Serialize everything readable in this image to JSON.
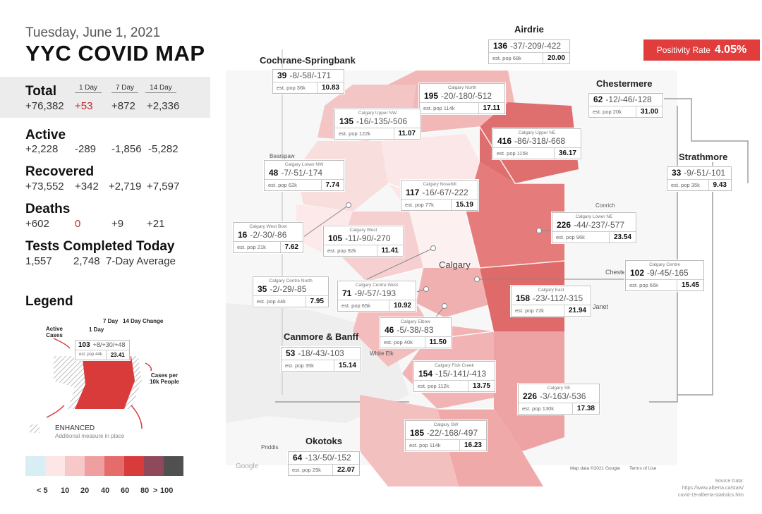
{
  "header": {
    "date": "Tuesday, June 1, 2021",
    "title": "YYC COVID MAP"
  },
  "columns": {
    "d1": "1 Day",
    "d7": "7 Day",
    "d14": "14 Day"
  },
  "stats": {
    "total": {
      "label": "Total",
      "value": "+76,382",
      "d1": "+53",
      "d7": "+872",
      "d14": "+2,336"
    },
    "active": {
      "label": "Active",
      "value": "+2,228",
      "d1": "-289",
      "d7": "-1,856",
      "d14": "-5,282"
    },
    "recovered": {
      "label": "Recovered",
      "value": "+73,552",
      "d1": "+342",
      "d7": "+2,719",
      "d14": "+7,597"
    },
    "deaths": {
      "label": "Deaths",
      "value": "+602",
      "d1": "0",
      "d7": "+9",
      "d14": "+21"
    },
    "tests": {
      "label": "Tests Completed Today",
      "value": "1,557",
      "avg": "2,748",
      "avg_label": "7-Day Average"
    }
  },
  "legend": {
    "title": "Legend",
    "seven_day": "7 Day",
    "fourteen_day": "14 Day Change",
    "one_day": "1 Day",
    "active_cases": "Active Cases",
    "example": {
      "num": "103",
      "change": "+8/+30/+48",
      "pop": "est. pop 44k",
      "rate": "23.41"
    },
    "cases_per": "Cases per 10k People",
    "enhanced": "ENHANCED",
    "enhanced_sub": "Additional measure in place",
    "scale_colors": [
      "#d8eef5",
      "#fde6e6",
      "#f7c8c8",
      "#ef9f9f",
      "#e66c6c",
      "#d93b3b",
      "#8e4a5a",
      "#505050"
    ],
    "scale_labels": [
      "< 5",
      "10",
      "20",
      "40",
      "60",
      "80",
      ">",
      "100"
    ]
  },
  "positivity": {
    "label": "Positivity Rate",
    "value": "4.05%"
  },
  "regions": {
    "airdrie": "Airdrie",
    "cochrane": "Cochrane-Springbank",
    "chestermere": "Chestermere",
    "strathmore": "Strathmore",
    "canmore": "Canmore & Banff",
    "okotoks": "Okotoks"
  },
  "cards": [
    {
      "name": "",
      "num": "136",
      "change": "-37/-209/-422",
      "pop": "est. pop 68k",
      "rate": "20.00"
    },
    {
      "name": "",
      "num": "39",
      "change": "-8/-58/-171",
      "pop": "est. pop 36k",
      "rate": "10.83"
    },
    {
      "name": "Calgary North",
      "num": "195",
      "change": "-20/-180/-512",
      "pop": "est. pop 114k",
      "rate": "17.11"
    },
    {
      "name": "",
      "num": "62",
      "change": "-12/-46/-128",
      "pop": "est. pop 20k",
      "rate": "31.00"
    },
    {
      "name": "Calgary Upper NW",
      "num": "135",
      "change": "-16/-135/-506",
      "pop": "est. pop 122k",
      "rate": "11.07"
    },
    {
      "name": "Calgary Upper NE",
      "num": "416",
      "change": "-86/-318/-668",
      "pop": "est. pop 115k",
      "rate": "36.17"
    },
    {
      "name": "Calgary Lower NW",
      "num": "48",
      "change": "-7/-51/-174",
      "pop": "est. pop 62k",
      "rate": "7.74"
    },
    {
      "name": "",
      "num": "33",
      "change": "-9/-51/-101",
      "pop": "est. pop 35k",
      "rate": "9.43"
    },
    {
      "name": "Calgary Nosehill",
      "num": "117",
      "change": "-16/-67/-222",
      "pop": "est. pop 77k",
      "rate": "15.19"
    },
    {
      "name": "Calgary Lower NE",
      "num": "226",
      "change": "-44/-237/-577",
      "pop": "est. pop 96k",
      "rate": "23.54"
    },
    {
      "name": "Calgary West Bow",
      "num": "16",
      "change": "-2/-30/-86",
      "pop": "est. pop 21k",
      "rate": "7.62"
    },
    {
      "name": "Calgary West",
      "num": "105",
      "change": "-11/-90/-270",
      "pop": "est. pop 92k",
      "rate": "11.41"
    },
    {
      "name": "Calgary Centre",
      "num": "102",
      "change": "-9/-45/-165",
      "pop": "est. pop 66k",
      "rate": "15.45"
    },
    {
      "name": "Calgary Centre North",
      "num": "35",
      "change": "-2/-29/-85",
      "pop": "est. pop 44k",
      "rate": "7.95"
    },
    {
      "name": "Calgary Centre West",
      "num": "71",
      "change": "-9/-57/-193",
      "pop": "est. pop 65k",
      "rate": "10.92"
    },
    {
      "name": "Calgary East",
      "num": "158",
      "change": "-23/-112/-315",
      "pop": "est. pop 72k",
      "rate": "21.94"
    },
    {
      "name": "Calgary Elbow",
      "num": "46",
      "change": "-5/-38/-83",
      "pop": "est. pop 40k",
      "rate": "11.50"
    },
    {
      "name": "",
      "num": "53",
      "change": "-18/-43/-103",
      "pop": "est. pop 35k",
      "rate": "15.14"
    },
    {
      "name": "Calgary Fish Creek",
      "num": "154",
      "change": "-15/-141/-413",
      "pop": "est. pop 112k",
      "rate": "13.75"
    },
    {
      "name": "Calgary SE",
      "num": "226",
      "change": "-3/-163/-536",
      "pop": "est. pop 130k",
      "rate": "17.38"
    },
    {
      "name": "Calgary SW",
      "num": "185",
      "change": "-22/-168/-497",
      "pop": "est. pop 114k",
      "rate": "16.23"
    },
    {
      "name": "",
      "num": "64",
      "change": "-13/-50/-152",
      "pop": "est. pop 29k",
      "rate": "22.07"
    }
  ],
  "map_labels": {
    "calgary": "Calgary",
    "chestermere_town": "Chester",
    "janet": "Janet",
    "conrich": "Conrich",
    "priddis": "Priddis",
    "bearspaw": "Bearspaw",
    "white_elk": "White Elk",
    "google": "Google",
    "mapdata": "Map data ©2021 Google",
    "terms": "Terms of Use"
  },
  "source": {
    "l1": "Source Data:",
    "l2": "https://www.alberta.ca/stats/",
    "l3": "covid-19-alberta-statistics.htm"
  }
}
